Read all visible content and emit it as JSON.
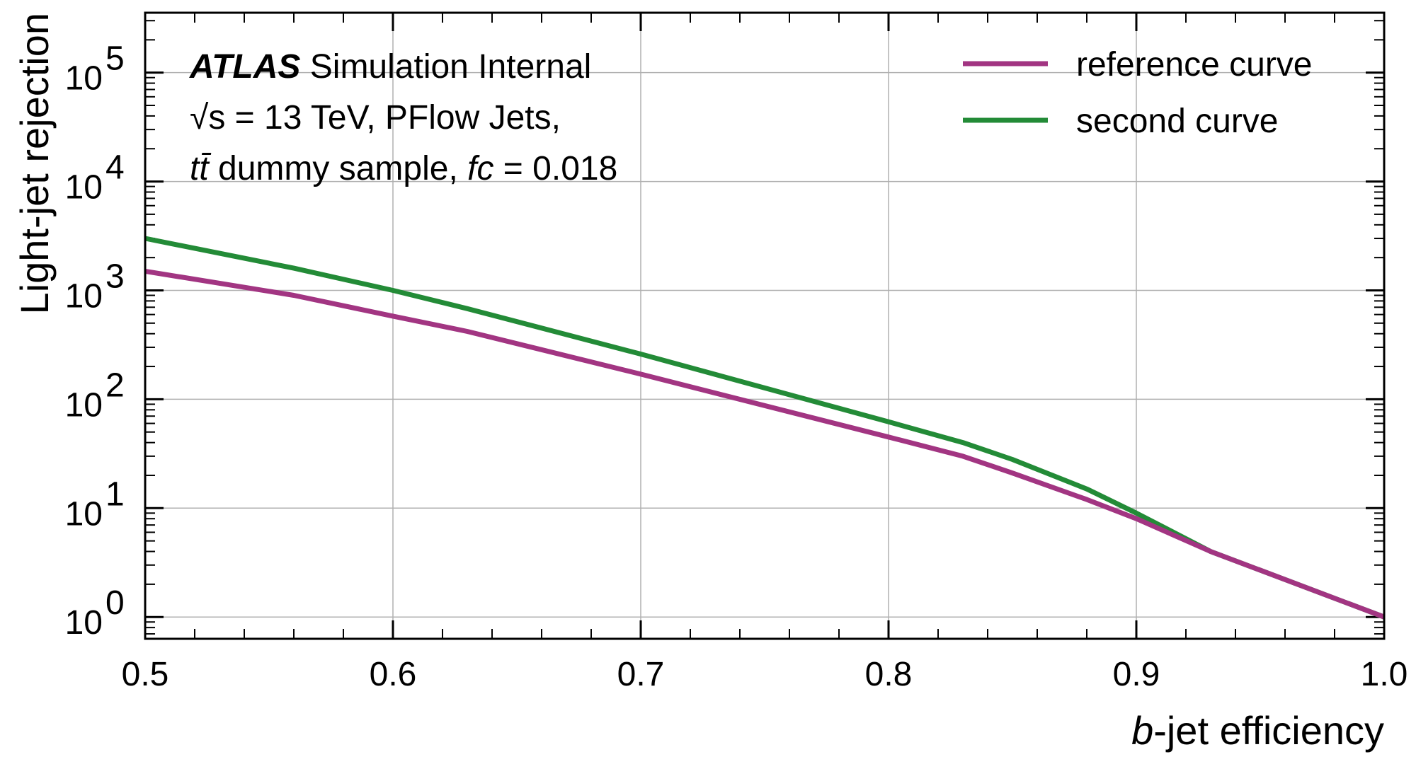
{
  "chart_data": {
    "type": "line",
    "title": "",
    "xlabel": "b-jet efficiency",
    "xlabel_italic_prefix": "b",
    "xlabel_rest": "-jet efficiency",
    "ylabel": "Light-jet rejection",
    "xlim": [
      0.5,
      1.0
    ],
    "ylim_log10": [
      -0.2,
      5.55
    ],
    "yscale": "log",
    "grid": true,
    "legend_position": "top-right",
    "x_ticks": [
      "0.5",
      "0.6",
      "0.7",
      "0.8",
      "0.9",
      "1.0"
    ],
    "y_ticks": [
      {
        "base": "10",
        "exp": "0"
      },
      {
        "base": "10",
        "exp": "1"
      },
      {
        "base": "10",
        "exp": "2"
      },
      {
        "base": "10",
        "exp": "3"
      },
      {
        "base": "10",
        "exp": "4"
      },
      {
        "base": "10",
        "exp": "5"
      }
    ],
    "series": [
      {
        "name": "reference curve",
        "color": "#a23582",
        "x": [
          0.5,
          0.56,
          0.6,
          0.63,
          0.7,
          0.8,
          0.83,
          0.85,
          0.88,
          0.9,
          0.93,
          1.0
        ],
        "y": [
          1500,
          900,
          580,
          420,
          170,
          45,
          30,
          21,
          12,
          8,
          4,
          1
        ]
      },
      {
        "name": "second curve",
        "color": "#238b37",
        "x": [
          0.5,
          0.56,
          0.6,
          0.63,
          0.7,
          0.8,
          0.83,
          0.85,
          0.88,
          0.9,
          0.93,
          1.0
        ],
        "y": [
          3000,
          1600,
          1000,
          680,
          260,
          62,
          40,
          28,
          15,
          9,
          4,
          1
        ]
      }
    ]
  },
  "annotation": {
    "atlas": "ATLAS",
    "atlas_suffix": " Simulation Internal",
    "line2": "√s = 13 TeV, PFlow Jets,",
    "line3_ttbar": "tt̄",
    "line3_mid": " dummy sample, ",
    "line3_fc": "fc",
    "line3_value": " = 0.018"
  }
}
